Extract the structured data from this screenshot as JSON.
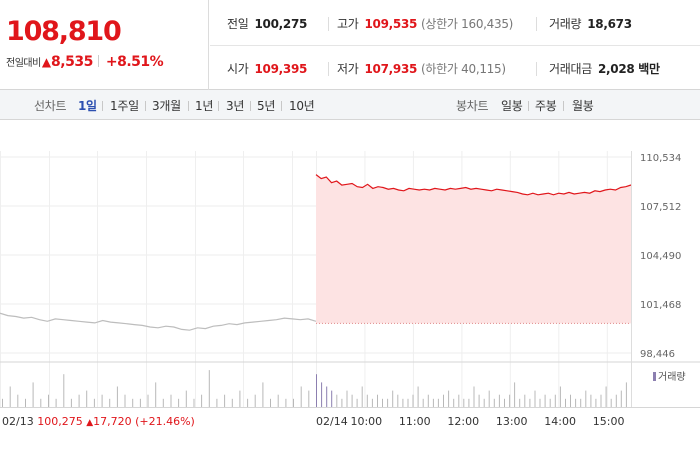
{
  "stock": {
    "price": "108,810",
    "change_label": "전일대비",
    "change_arrow": "▲",
    "change_value": "8,535",
    "change_pct": "+8.51%"
  },
  "stats": {
    "prev_label": "전일",
    "prev_value": "100,275",
    "high_label": "고가",
    "high_value": "109,535",
    "high_sub": "(상한가 160,435)",
    "volume_label": "거래량",
    "volume_value": "18,673",
    "open_label": "시가",
    "open_value": "109,395",
    "low_label": "저가",
    "low_value": "107,935",
    "low_sub": "(하한가 40,115)",
    "amount_label": "거래대금",
    "amount_value": "2,028 백만"
  },
  "tabs": {
    "line_title": "선차트",
    "line_items": [
      "1일",
      "1주일",
      "3개월",
      "1년",
      "3년",
      "5년",
      "10년"
    ],
    "line_active": "1일",
    "candle_title": "봉차트",
    "candle_items": [
      "일봉",
      "주봉",
      "월봉"
    ]
  },
  "colors": {
    "up": "#e0161b",
    "area_fill": "#fde3e3",
    "prev_line": "#bdbdbd",
    "active_tab": "#2c4fb0",
    "volume_bar": "#b8b8b8",
    "volume_today": "#8c7fb0"
  },
  "chart_data": {
    "type": "line",
    "y_ticks": [
      "110,534",
      "107,512",
      "104,490",
      "101,468",
      "98,446"
    ],
    "y_tick_values": [
      110534,
      107512,
      104490,
      101468,
      98446
    ],
    "ylim": [
      98446,
      110534
    ],
    "baseline": 100275,
    "x_labels": [
      "02/14",
      "10:00",
      "11:00",
      "12:00",
      "13:00",
      "14:00",
      "15:00"
    ],
    "x_label_minutes": [
      0,
      60,
      120,
      180,
      240,
      300,
      360
    ],
    "session_minutes": 390,
    "legend": "거래량",
    "prev_day": {
      "label": "02/13",
      "close": "100,275",
      "change_arrow": "▲",
      "change": "17,720",
      "change_pct": "(+21.46%)",
      "series": [
        100900,
        100750,
        100700,
        100600,
        100650,
        100500,
        100400,
        100550,
        100500,
        100450,
        100400,
        100350,
        100300,
        100450,
        100350,
        100300,
        100250,
        100200,
        100150,
        100050,
        100000,
        100100,
        100050,
        99900,
        99850,
        100000,
        99950,
        100100,
        100150,
        100250,
        100200,
        100300,
        100350,
        100400,
        100450,
        100500,
        100600,
        100550,
        100500,
        100550,
        100400
      ]
    },
    "today": {
      "series": [
        109450,
        109200,
        109300,
        108950,
        109050,
        108800,
        108850,
        108900,
        108700,
        108650,
        108850,
        108600,
        108700,
        108650,
        108550,
        108600,
        108500,
        108450,
        108600,
        108550,
        108500,
        108550,
        108500,
        108600,
        108550,
        108500,
        108600,
        108550,
        108600,
        108650,
        108550,
        108600,
        108550,
        108500,
        108450,
        108550,
        108500,
        108450,
        108400,
        108350,
        108250,
        108200,
        108300,
        108200,
        108250,
        108300,
        108200,
        108300,
        108250,
        108350,
        108250,
        108300,
        108350,
        108300,
        108450,
        108400,
        108500,
        108550,
        108500,
        108650,
        108700,
        108810
      ]
    },
    "volume": {
      "prev_day": [
        2,
        5,
        3,
        2,
        6,
        2,
        3,
        2,
        8,
        2,
        3,
        4,
        2,
        3,
        2,
        5,
        3,
        2,
        2,
        3,
        6,
        2,
        3,
        2,
        4,
        2,
        3,
        9,
        2,
        3,
        2,
        4,
        2,
        3,
        6,
        2,
        3,
        2,
        2,
        5,
        4
      ],
      "today": [
        8,
        6,
        5,
        4,
        3,
        2,
        4,
        3,
        2,
        5,
        3,
        2,
        3,
        2,
        2,
        4,
        3,
        2,
        2,
        3,
        5,
        2,
        3,
        2,
        2,
        3,
        4,
        2,
        3,
        2,
        2,
        5,
        3,
        2,
        4,
        2,
        3,
        2,
        3,
        6,
        2,
        3,
        2,
        4,
        2,
        3,
        2,
        3,
        5,
        2,
        3,
        2,
        2,
        4,
        3,
        2,
        3,
        5,
        2,
        3,
        4,
        6
      ]
    }
  }
}
